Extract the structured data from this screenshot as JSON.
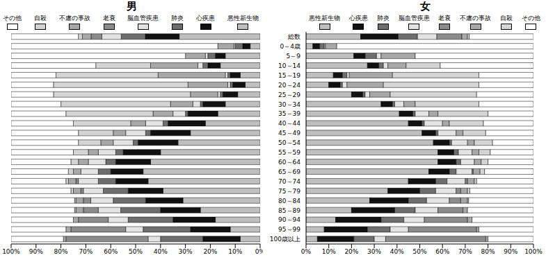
{
  "chart_data": [
    {
      "type": "bar",
      "title": "男",
      "orientation": "horizontal",
      "stacked": true,
      "grid": false,
      "categories": [
        "総数",
        "0～4歳",
        "5～9",
        "10～14",
        "15～19",
        "20～24",
        "25～29",
        "30～34",
        "35～39",
        "40～44",
        "45～49",
        "50～54",
        "55～59",
        "60～64",
        "65～69",
        "70～74",
        "75～79",
        "80～84",
        "85～89",
        "90～94",
        "95～99",
        "100歳以上"
      ],
      "xlim": [
        0,
        100
      ],
      "xticks": [
        {
          "value": 0,
          "label": "0%"
        },
        {
          "value": 10,
          "label": "10%"
        },
        {
          "value": 20,
          "label": "20%"
        },
        {
          "value": 30,
          "label": "30%"
        },
        {
          "value": 40,
          "label": "40%"
        },
        {
          "value": 50,
          "label": "50%"
        },
        {
          "value": 60,
          "label": "60%"
        },
        {
          "value": 70,
          "label": "70%"
        },
        {
          "value": 80,
          "label": "80%"
        },
        {
          "value": 90,
          "label": "90%"
        },
        {
          "value": 100,
          "label": "100%"
        }
      ],
      "series": [
        {
          "name": "悪性新生物",
          "color": "#bfbfbf",
          "values": [
            32.5,
            4,
            14,
            16,
            8,
            6,
            9,
            14,
            17,
            22,
            28,
            33,
            40,
            44,
            47,
            45,
            39,
            31,
            24,
            18,
            12,
            8
          ]
        },
        {
          "name": "心疾患",
          "color": "#111111",
          "values": [
            13.6,
            3,
            4,
            5,
            4,
            5,
            6,
            9,
            12,
            15,
            16,
            16,
            15,
            14,
            13,
            13,
            14,
            15,
            16,
            17,
            16,
            15
          ]
        },
        {
          "name": "肺炎",
          "color": "#6e6e6e",
          "values": [
            9.7,
            3,
            3,
            2,
            1,
            1,
            1,
            1,
            1,
            2,
            2,
            2,
            3,
            4,
            5,
            7,
            10,
            13,
            16,
            18,
            19,
            17
          ]
        },
        {
          "name": "脳血管疾患",
          "color": "#e3e3e3",
          "values": [
            7.8,
            0.5,
            1,
            2,
            1,
            1,
            1,
            3,
            5,
            7,
            8,
            8,
            7,
            7,
            7,
            8,
            8,
            9,
            9,
            8,
            7,
            5
          ]
        },
        {
          "name": "老衰",
          "color": "#8c8c8c",
          "values": [
            4.3,
            0,
            0,
            0,
            0,
            0,
            0,
            0,
            0,
            0,
            0,
            0,
            0,
            0,
            0,
            1,
            1,
            3,
            6,
            12,
            22,
            33
          ]
        },
        {
          "name": "不慮の事故",
          "color": "#a8a8a8",
          "values": [
            3.5,
            6.5,
            8,
            19,
            27,
            16,
            11,
            9,
            8,
            6,
            5,
            5,
            4,
            4,
            3,
            3,
            3,
            3,
            3,
            2,
            2,
            1
          ]
        },
        {
          "name": "自殺",
          "color": "#d4d4d4",
          "values": [
            1.6,
            0,
            0,
            22,
            41,
            54,
            55,
            44,
            35,
            23,
            14,
            9,
            6,
            3,
            2,
            1,
            1,
            0.5,
            0.5,
            0,
            0,
            0
          ]
        },
        {
          "name": "その他",
          "color": "#ffffff",
          "values": [
            27,
            83,
            70,
            34,
            18,
            17,
            17,
            20,
            22,
            25,
            27,
            27,
            25,
            24,
            23,
            22,
            24,
            25.5,
            25.5,
            25,
            22,
            21
          ]
        }
      ]
    },
    {
      "type": "bar",
      "title": "女",
      "orientation": "horizontal",
      "stacked": true,
      "grid": false,
      "categories": [
        "総数",
        "0～4歳",
        "5～9",
        "10～14",
        "15～19",
        "20～24",
        "25～29",
        "30～34",
        "35～39",
        "40～44",
        "45～49",
        "50～54",
        "55～59",
        "60～64",
        "65～69",
        "70～74",
        "75～79",
        "80～84",
        "85～89",
        "90～94",
        "95～99",
        "100歳以上"
      ],
      "xlim": [
        0,
        100
      ],
      "xticks": [
        {
          "value": 0,
          "label": "0%"
        },
        {
          "value": 10,
          "label": "10%"
        },
        {
          "value": 20,
          "label": "20%"
        },
        {
          "value": 30,
          "label": "30%"
        },
        {
          "value": 40,
          "label": "40%"
        },
        {
          "value": 50,
          "label": "50%"
        },
        {
          "value": 60,
          "label": "60%"
        },
        {
          "value": 70,
          "label": "70%"
        },
        {
          "value": 80,
          "label": "80%"
        },
        {
          "value": 90,
          "label": "90%"
        },
        {
          "value": 100,
          "label": "100%"
        }
      ],
      "series": [
        {
          "name": "悪性新生物",
          "color": "#bfbfbf",
          "values": [
            24,
            3,
            21,
            27,
            12,
            10,
            20,
            33,
            41,
            45,
            51,
            56,
            58,
            58,
            54,
            45,
            36,
            28,
            20,
            13,
            8,
            5
          ]
        },
        {
          "name": "心疾患",
          "color": "#111111",
          "values": [
            16.5,
            3,
            5,
            5,
            4,
            5,
            5,
            5,
            6,
            6,
            6,
            7,
            7,
            8,
            9,
            12,
            14,
            17,
            19,
            20,
            19,
            16
          ]
        },
        {
          "name": "肺炎",
          "color": "#6e6e6e",
          "values": [
            8.5,
            2,
            5,
            2,
            2,
            1,
            1,
            1,
            1,
            1,
            1,
            1,
            2,
            2,
            3,
            5,
            7,
            8,
            9,
            10,
            10,
            9
          ]
        },
        {
          "name": "脳血管疾患",
          "color": "#e3e3e3",
          "values": [
            8.5,
            0.5,
            2,
            2,
            1,
            2,
            2,
            4,
            6,
            8,
            8,
            7,
            6,
            6,
            7,
            8,
            9,
            10,
            10,
            9,
            8,
            5
          ]
        },
        {
          "name": "老衰",
          "color": "#8c8c8c",
          "values": [
            11,
            0,
            0,
            0,
            0,
            0,
            0,
            0,
            0,
            0,
            0,
            0,
            0,
            0,
            0.5,
            1,
            2,
            5,
            11,
            19,
            30,
            44
          ]
        },
        {
          "name": "不慮の事故",
          "color": "#a8a8a8",
          "values": [
            2.5,
            5,
            15,
            8,
            19,
            16,
            9,
            5,
            4,
            3,
            3,
            3,
            3,
            3,
            3,
            3,
            3,
            3,
            2,
            2,
            1,
            1
          ]
        },
        {
          "name": "自殺",
          "color": "#d4d4d4",
          "values": [
            0.8,
            0,
            0,
            15,
            38,
            42,
            38,
            28,
            22,
            15,
            10,
            8,
            5,
            3,
            2,
            1,
            1,
            0.5,
            0,
            0,
            0,
            0
          ]
        },
        {
          "name": "その他",
          "color": "#ffffff",
          "values": [
            28.2,
            86.5,
            52,
            41,
            24,
            24,
            25,
            24,
            20,
            22,
            21,
            18,
            19,
            20,
            21.5,
            25,
            28,
            28.5,
            29,
            27,
            24,
            20
          ]
        }
      ]
    }
  ]
}
